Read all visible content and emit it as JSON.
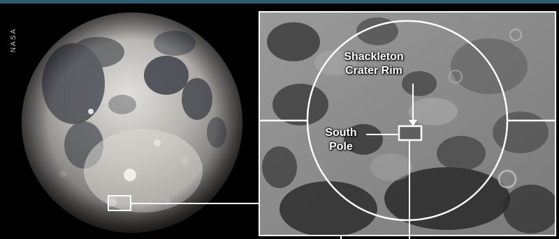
{
  "credit": "NASA",
  "labels": {
    "crater_rim_line1": "Shackleton",
    "crater_rim_line2": "Crater Rim",
    "pole_line1": "South",
    "pole_line2": "Pole"
  },
  "colors": {
    "top_bar": "#2f5f6e",
    "frame": "#ffffff",
    "background": "#000000"
  }
}
